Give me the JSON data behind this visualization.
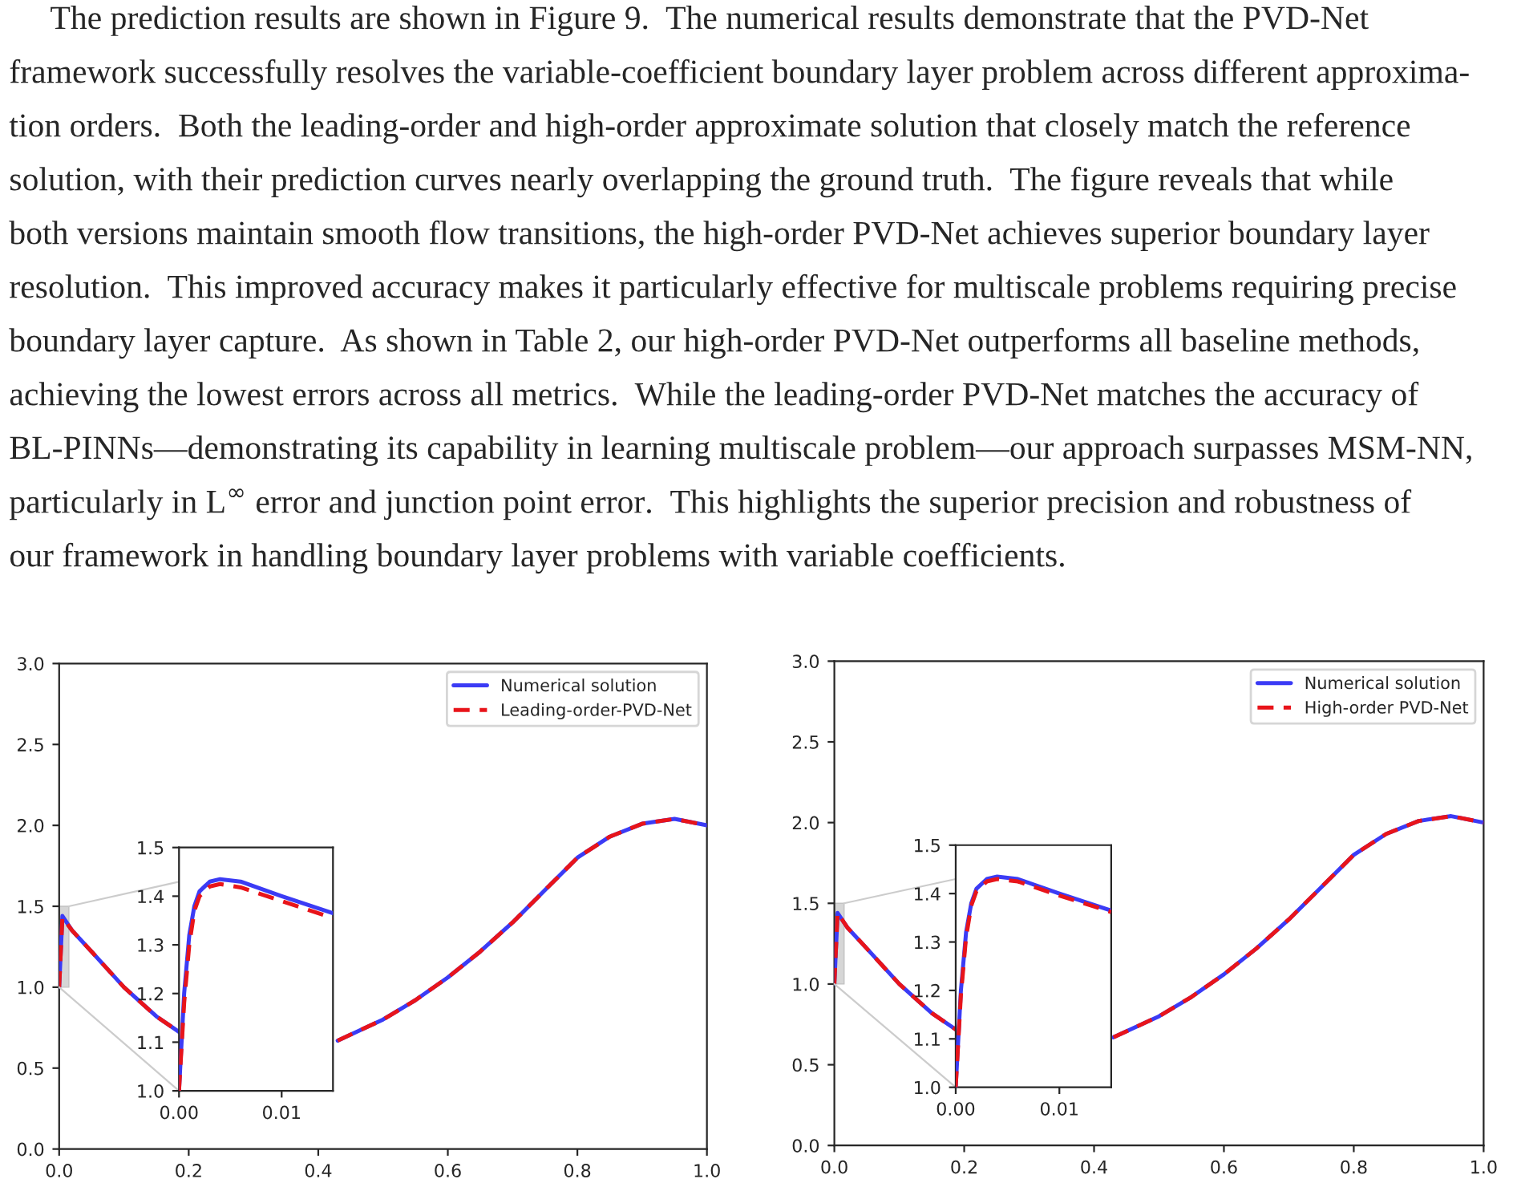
{
  "chart_data": [
    {
      "type": "other",
      "annotations": [
        "The prediction results are shown in Figure 9.  The numerical results demonstrate that the PVD-Net",
        "framework successfully resolves the variable-coefficient boundary layer problem across different approxima-",
        "tion orders.  Both the leading-order and high-order approximate solution that closely match the reference",
        "solution, with their prediction curves nearly overlapping the ground truth.  The figure reveals that while",
        "both versions maintain smooth flow transitions, the high-order PVD-Net achieves superior boundary layer",
        "resolution.  This improved accuracy makes it particularly effective for multiscale problems requiring precise",
        "boundary layer capture.  As shown in Table 2, our high-order PVD-Net outperforms all baseline methods,",
        "achieving the lowest errors across all metrics.  While the leading-order PVD-Net matches the accuracy of",
        "BL-PINNs—demonstrating its capability in learning multiscale problem—our approach surpasses MSM-NN,",
        "particularly in L$^{∞}$ error and junction point error.  This highlights the superior precision and robustness of",
        "our framework in handling boundary layer problems with variable coefficients."
      ]
    },
    {
      "type": "line",
      "legend": "top right",
      "grid": false,
      "x": [
        0,
        0.005,
        0.02,
        0.05,
        0.1,
        0.15,
        0.19,
        0.3,
        0.43,
        0.5,
        0.55,
        0.6,
        0.65,
        0.7,
        0.75,
        0.8,
        0.85,
        0.9,
        0.95,
        1.0
      ],
      "xlim": [
        0,
        1
      ],
      "ylim": [
        0,
        3
      ],
      "xticks": [
        {
          "value": 0,
          "label": "0.0"
        },
        {
          "value": 0.2,
          "label": "0.2"
        },
        {
          "value": 0.4,
          "label": "0.4"
        },
        {
          "value": 0.6,
          "label": "0.6"
        },
        {
          "value": 0.8,
          "label": "0.8"
        },
        {
          "value": 1,
          "label": "1.0"
        }
      ],
      "yticks": [
        {
          "value": 0,
          "label": "0.0"
        },
        {
          "value": 0.5,
          "label": "0.5"
        },
        {
          "value": 1,
          "label": "1.0"
        },
        {
          "value": 1.5,
          "label": "1.5"
        },
        {
          "value": 2,
          "label": "2.0"
        },
        {
          "value": 2.5,
          "label": "2.5"
        },
        {
          "value": 3,
          "label": "3.0"
        }
      ],
      "series": [
        {
          "name": "Numerical solution",
          "color": "#3b3bf5",
          "line_style": "solid",
          "values": [
            1.0,
            1.44,
            1.35,
            1.22,
            1.0,
            0.82,
            0.71,
            null,
            0.67,
            0.8,
            0.92,
            1.06,
            1.22,
            1.4,
            1.6,
            1.8,
            1.93,
            2.01,
            2.04,
            2.0
          ]
        },
        {
          "name": "Leading-order-PVD-Net",
          "color": "#e8141a",
          "line_style": "dashed",
          "values": [
            1.0,
            1.43,
            1.35,
            1.22,
            1.0,
            0.82,
            0.71,
            null,
            0.67,
            0.8,
            0.92,
            1.06,
            1.22,
            1.4,
            1.6,
            1.8,
            1.93,
            2.01,
            2.04,
            2.0
          ]
        }
      ]
    },
    {
      "type": "line",
      "grid": false,
      "x": [
        0,
        0.0005,
        0.001,
        0.0015,
        0.002,
        0.003,
        0.004,
        0.006,
        0.01,
        0.015
      ],
      "xlim": [
        0,
        0.015
      ],
      "ylim": [
        1.0,
        1.5
      ],
      "xticks": [
        {
          "value": 0,
          "label": "0.00"
        },
        {
          "value": 0.01,
          "label": "0.01"
        }
      ],
      "yticks": [
        {
          "value": 1.0,
          "label": "1.0"
        },
        {
          "value": 1.1,
          "label": "1.1"
        },
        {
          "value": 1.2,
          "label": "1.2"
        },
        {
          "value": 1.3,
          "label": "1.3"
        },
        {
          "value": 1.4,
          "label": "1.4"
        },
        {
          "value": 1.5,
          "label": "1.5"
        }
      ],
      "series": [
        {
          "color": "#3b3bf5",
          "line_style": "solid",
          "values": [
            1.0,
            1.2,
            1.32,
            1.38,
            1.41,
            1.43,
            1.435,
            1.43,
            1.4,
            1.365
          ]
        },
        {
          "color": "#e8141a",
          "line_style": "dashed",
          "values": [
            1.0,
            1.18,
            1.3,
            1.37,
            1.4,
            1.42,
            1.425,
            1.418,
            1.39,
            1.355
          ]
        }
      ]
    },
    {
      "type": "line",
      "legend": "top right",
      "grid": false,
      "x": [
        0,
        0.005,
        0.02,
        0.05,
        0.1,
        0.15,
        0.19,
        0.3,
        0.43,
        0.5,
        0.55,
        0.6,
        0.65,
        0.7,
        0.75,
        0.8,
        0.85,
        0.9,
        0.95,
        1.0
      ],
      "xlim": [
        0,
        1
      ],
      "ylim": [
        0,
        3
      ],
      "xticks": [
        {
          "value": 0,
          "label": "0.0"
        },
        {
          "value": 0.2,
          "label": "0.2"
        },
        {
          "value": 0.4,
          "label": "0.4"
        },
        {
          "value": 0.6,
          "label": "0.6"
        },
        {
          "value": 0.8,
          "label": "0.8"
        },
        {
          "value": 1,
          "label": "1.0"
        }
      ],
      "yticks": [
        {
          "value": 0,
          "label": "0.0"
        },
        {
          "value": 0.5,
          "label": "0.5"
        },
        {
          "value": 1,
          "label": "1.0"
        },
        {
          "value": 1.5,
          "label": "1.5"
        },
        {
          "value": 2,
          "label": "2.0"
        },
        {
          "value": 2.5,
          "label": "2.5"
        },
        {
          "value": 3,
          "label": "3.0"
        }
      ],
      "series": [
        {
          "name": "Numerical solution",
          "color": "#3b3bf5",
          "line_style": "solid",
          "values": [
            1.0,
            1.44,
            1.35,
            1.22,
            1.0,
            0.82,
            0.71,
            null,
            0.67,
            0.8,
            0.92,
            1.06,
            1.22,
            1.4,
            1.6,
            1.8,
            1.93,
            2.01,
            2.04,
            2.0
          ]
        },
        {
          "name": "High-order PVD-Net",
          "color": "#e8141a",
          "line_style": "dashed",
          "values": [
            1.0,
            1.44,
            1.35,
            1.22,
            1.0,
            0.82,
            0.71,
            null,
            0.67,
            0.8,
            0.92,
            1.06,
            1.22,
            1.4,
            1.6,
            1.8,
            1.93,
            2.01,
            2.04,
            2.0
          ]
        }
      ]
    },
    {
      "type": "line",
      "grid": false,
      "x": [
        0,
        0.0005,
        0.001,
        0.0015,
        0.002,
        0.003,
        0.004,
        0.006,
        0.01,
        0.015
      ],
      "xlim": [
        0,
        0.015
      ],
      "ylim": [
        1.0,
        1.5
      ],
      "xticks": [
        {
          "value": 0,
          "label": "0.00"
        },
        {
          "value": 0.01,
          "label": "0.01"
        }
      ],
      "yticks": [
        {
          "value": 1.0,
          "label": "1.0"
        },
        {
          "value": 1.1,
          "label": "1.1"
        },
        {
          "value": 1.2,
          "label": "1.2"
        },
        {
          "value": 1.3,
          "label": "1.3"
        },
        {
          "value": 1.4,
          "label": "1.4"
        },
        {
          "value": 1.5,
          "label": "1.5"
        }
      ],
      "series": [
        {
          "color": "#3b3bf5",
          "line_style": "solid",
          "values": [
            1.0,
            1.2,
            1.32,
            1.38,
            1.41,
            1.43,
            1.435,
            1.43,
            1.4,
            1.365
          ]
        },
        {
          "color": "#e8141a",
          "line_style": "dashed",
          "values": [
            1.0,
            1.19,
            1.31,
            1.375,
            1.405,
            1.425,
            1.43,
            1.425,
            1.396,
            1.362
          ]
        }
      ]
    }
  ]
}
